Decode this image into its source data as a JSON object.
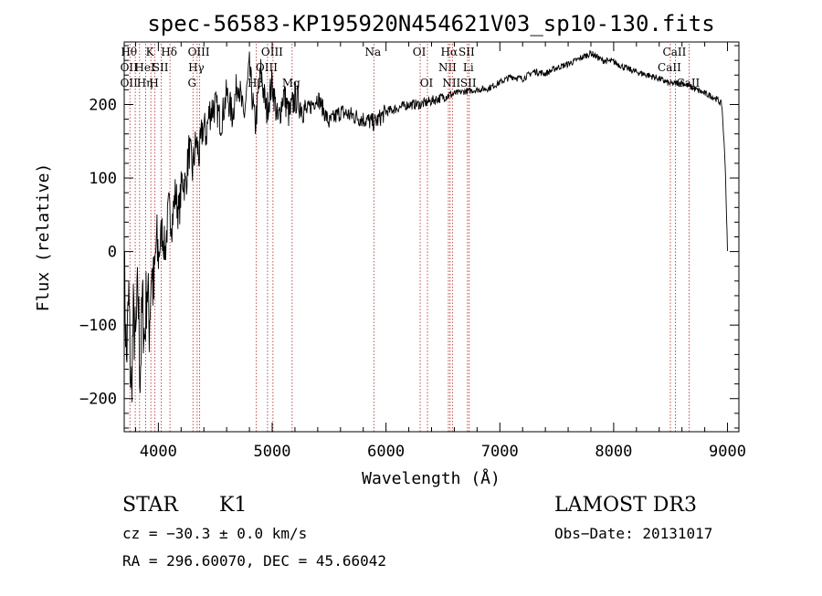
{
  "chart_data": {
    "type": "line",
    "title": "spec-56583-KP195920N454621V03_sp10-130.fits",
    "xlabel": "Wavelength (Å)",
    "ylabel": "Flux (relative)",
    "xlim": [
      3700,
      9100
    ],
    "ylim": [
      -245,
      285
    ],
    "x_ticks": [
      4000,
      5000,
      6000,
      7000,
      8000,
      9000
    ],
    "y_ticks": [
      -200,
      -100,
      0,
      100,
      200
    ],
    "x_tick_labels": [
      "4000",
      "5000",
      "6000",
      "7000",
      "8000",
      "9000"
    ],
    "y_tick_labels": [
      "−200",
      "−100",
      "0",
      "100",
      "200"
    ],
    "series": [
      {
        "name": "flux",
        "x": [
          3700,
          3720,
          3740,
          3760,
          3780,
          3800,
          3820,
          3840,
          3860,
          3880,
          3900,
          3920,
          3940,
          3960,
          3980,
          4000,
          4030,
          4060,
          4090,
          4120,
          4150,
          4180,
          4210,
          4240,
          4270,
          4300,
          4330,
          4360,
          4390,
          4420,
          4450,
          4500,
          4550,
          4600,
          4650,
          4700,
          4750,
          4800,
          4850,
          4900,
          4950,
          5000,
          5050,
          5100,
          5150,
          5200,
          5300,
          5400,
          5500,
          5600,
          5700,
          5800,
          5900,
          6000,
          6100,
          6200,
          6300,
          6400,
          6500,
          6600,
          6700,
          6800,
          6900,
          7000,
          7100,
          7200,
          7300,
          7400,
          7500,
          7600,
          7700,
          7800,
          7900,
          8000,
          8100,
          8200,
          8300,
          8400,
          8500,
          8600,
          8700,
          8800,
          8850,
          8900,
          8950,
          8980,
          9000
        ],
        "y": [
          -20,
          -150,
          -60,
          -200,
          -90,
          -130,
          -50,
          -170,
          -70,
          -120,
          -40,
          -100,
          -20,
          -60,
          10,
          -10,
          30,
          0,
          60,
          40,
          80,
          50,
          100,
          90,
          140,
          110,
          150,
          130,
          170,
          160,
          190,
          200,
          175,
          215,
          185,
          235,
          180,
          250,
          170,
          245,
          190,
          230,
          175,
          215,
          185,
          210,
          190,
          210,
          175,
          190,
          185,
          180,
          175,
          190,
          195,
          200,
          200,
          205,
          210,
          215,
          218,
          220,
          222,
          230,
          238,
          235,
          245,
          242,
          250,
          255,
          262,
          270,
          260,
          258,
          250,
          244,
          240,
          235,
          228,
          230,
          222,
          215,
          212,
          208,
          200,
          120,
          0
        ]
      }
    ],
    "line_markers": [
      {
        "x": 3750,
        "labels": [
          "Hθ",
          "OII",
          "OII"
        ]
      },
      {
        "x": 3797,
        "labels": [
          "",
          "",
          ""
        ]
      },
      {
        "x": 3835,
        "labels": [
          "",
          "",
          ""
        ]
      },
      {
        "x": 3889,
        "labels": [
          "",
          "HeI",
          "Hη"
        ]
      },
      {
        "x": 3934,
        "labels": [
          "K",
          "",
          ""
        ]
      },
      {
        "x": 3970,
        "labels": [
          "",
          "",
          "H"
        ]
      },
      {
        "x": 4026,
        "labels": [
          "",
          "SII",
          ""
        ]
      },
      {
        "x": 4102,
        "labels": [
          "Hδ",
          "",
          ""
        ]
      },
      {
        "x": 4304,
        "labels": [
          "",
          "",
          "G"
        ]
      },
      {
        "x": 4341,
        "labels": [
          "",
          "Hγ",
          ""
        ]
      },
      {
        "x": 4363,
        "labels": [
          "OIII",
          "",
          ""
        ]
      },
      {
        "x": 4861,
        "labels": [
          "",
          "",
          "Hβ"
        ]
      },
      {
        "x": 4959,
        "labels": [
          "",
          "OIII",
          ""
        ]
      },
      {
        "x": 5007,
        "labels": [
          "OIII",
          "",
          ""
        ]
      },
      {
        "x": 5175,
        "labels": [
          "",
          "",
          "Mg"
        ]
      },
      {
        "x": 5893,
        "labels": [
          "Na",
          "",
          ""
        ]
      },
      {
        "x": 6300,
        "labels": [
          "OI",
          "",
          ""
        ]
      },
      {
        "x": 6364,
        "labels": [
          "",
          "",
          "OI"
        ]
      },
      {
        "x": 6548,
        "labels": [
          "",
          "NII",
          ""
        ]
      },
      {
        "x": 6563,
        "labels": [
          "Hα",
          "",
          ""
        ]
      },
      {
        "x": 6583,
        "labels": [
          "",
          "",
          "NII"
        ]
      },
      {
        "x": 6716,
        "labels": [
          "SII",
          "",
          ""
        ]
      },
      {
        "x": 6731,
        "labels": [
          "",
          "Li",
          "SII"
        ]
      },
      {
        "x": 8498,
        "labels": [
          "",
          "CaII",
          ""
        ]
      },
      {
        "x": 8542,
        "labels": [
          "CaII",
          "",
          ""
        ]
      },
      {
        "x": 8662,
        "labels": [
          "",
          "",
          "CaII"
        ]
      }
    ]
  },
  "info": {
    "object_class": "STAR",
    "subclass": "K1",
    "survey": "LAMOST DR3",
    "cz": "cz = −30.3 ± 0.0 km/s",
    "obs_date": "Obs−Date: 20131017",
    "coords": "RA = 296.60070, DEC =  45.66042"
  },
  "colors": {
    "spectrum": "#000000",
    "marker_line": "#b22222",
    "axes": "#000000",
    "background": "#ffffff"
  }
}
